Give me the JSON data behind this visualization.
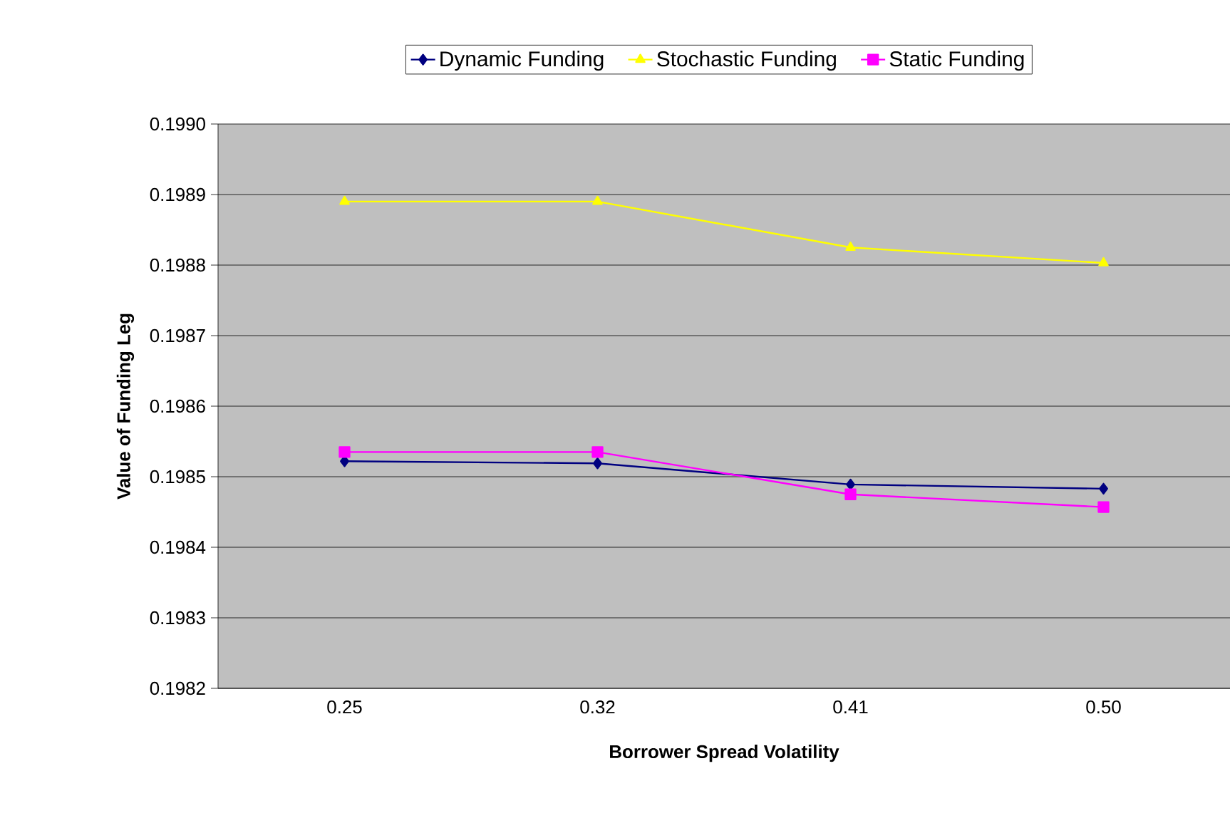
{
  "chart_data": {
    "type": "line",
    "xlabel": "Borrower Spread Volatility",
    "ylabel": "Value of Funding Leg",
    "categories": [
      "0.25",
      "0.32",
      "0.41",
      "0.50"
    ],
    "series": [
      {
        "name": "Dynamic Funding",
        "color": "#000080",
        "marker": "diamond",
        "values": [
          0.198522,
          0.198519,
          0.198489,
          0.198483
        ]
      },
      {
        "name": "Stochastic Funding",
        "color": "#ffff00",
        "marker": "triangle",
        "values": [
          0.19889,
          0.19889,
          0.198825,
          0.198803
        ]
      },
      {
        "name": "Static Funding",
        "color": "#ff00ff",
        "marker": "square",
        "values": [
          0.198535,
          0.198535,
          0.198475,
          0.198457
        ]
      }
    ],
    "ylim": [
      0.1982,
      0.199
    ],
    "yticks": [
      {
        "value": 0.1982,
        "label": "0.1982"
      },
      {
        "value": 0.1983,
        "label": "0.1983"
      },
      {
        "value": 0.1984,
        "label": "0.1984"
      },
      {
        "value": 0.1985,
        "label": "0.1985"
      },
      {
        "value": 0.1986,
        "label": "0.1986"
      },
      {
        "value": 0.1987,
        "label": "0.1987"
      },
      {
        "value": 0.1988,
        "label": "0.1988"
      },
      {
        "value": 0.1989,
        "label": "0.1989"
      },
      {
        "value": 0.199,
        "label": "0.1990"
      }
    ],
    "grid": "y",
    "legend": "top"
  }
}
